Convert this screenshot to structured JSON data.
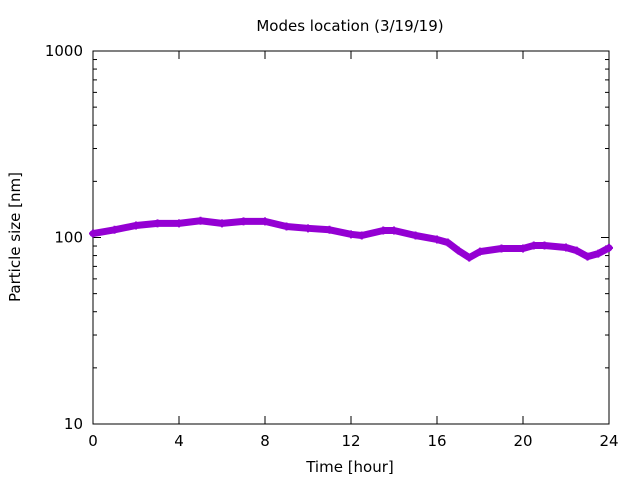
{
  "chart_data": {
    "type": "line",
    "title": "Modes location (3/19/19)",
    "xlabel": "Time [hour]",
    "ylabel": "Particle size [nm]",
    "xlim": [
      0,
      24
    ],
    "ylim": [
      10,
      1000
    ],
    "yscale": "log",
    "xticks": [
      "0",
      "4",
      "8",
      "12",
      "16",
      "20",
      "24"
    ],
    "yticks": [
      "10",
      "100",
      "1000"
    ],
    "grid": false,
    "series": [
      {
        "name": "modes",
        "color": "#9400d3",
        "x": [
          0,
          1,
          2,
          3,
          4,
          5,
          6,
          7,
          8,
          9,
          10,
          11,
          12,
          12.5,
          13.5,
          14,
          15,
          16,
          16.5,
          17,
          17.5,
          18,
          19,
          20,
          20.5,
          21,
          22,
          22.5,
          23,
          23.5,
          24
        ],
        "y": [
          105,
          110,
          116,
          119,
          119,
          123,
          119,
          122,
          122,
          114.5,
          112,
          110,
          104,
          102.5,
          109,
          109,
          102.5,
          97.6,
          94,
          85,
          78,
          84,
          87.3,
          87.3,
          90.6,
          90.6,
          88.4,
          85,
          79,
          82,
          88
        ]
      }
    ]
  }
}
